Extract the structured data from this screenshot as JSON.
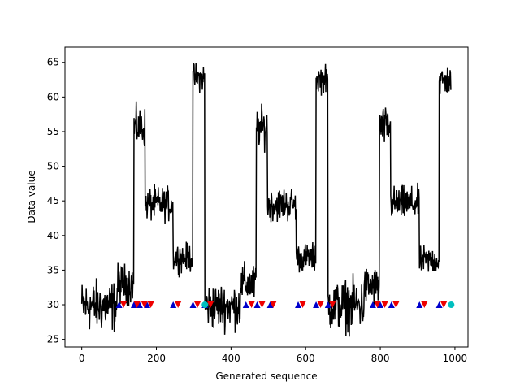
{
  "chart_data": {
    "type": "line",
    "xlabel": "Generated sequence",
    "ylabel": "Data value",
    "xlim": [
      -45,
      1035
    ],
    "ylim": [
      23.9,
      67.2
    ],
    "xticks": [
      0,
      200,
      400,
      600,
      800,
      1000
    ],
    "yticks": [
      25,
      30,
      35,
      40,
      45,
      50,
      55,
      60,
      65
    ],
    "grid": false,
    "series": [
      {
        "color": "#000000",
        "segments": [
          {
            "x0": 0,
            "x1": 95,
            "level": 29.8,
            "noise": 1.8
          },
          {
            "x0": 95,
            "x1": 140,
            "level": 33.0,
            "noise": 1.4
          },
          {
            "x0": 140,
            "x1": 170,
            "level": 55.6,
            "noise": 1.4
          },
          {
            "x0": 170,
            "x1": 245,
            "level": 44.5,
            "noise": 1.2
          },
          {
            "x0": 245,
            "x1": 298,
            "level": 36.8,
            "noise": 1.0
          },
          {
            "x0": 298,
            "x1": 330,
            "level": 62.8,
            "noise": 1.0
          },
          {
            "x0": 330,
            "x1": 425,
            "level": 29.8,
            "noise": 1.6
          },
          {
            "x0": 425,
            "x1": 468,
            "level": 33.0,
            "noise": 1.4
          },
          {
            "x0": 468,
            "x1": 498,
            "level": 55.6,
            "noise": 1.4
          },
          {
            "x0": 498,
            "x1": 575,
            "level": 44.5,
            "noise": 1.2
          },
          {
            "x0": 575,
            "x1": 628,
            "level": 36.8,
            "noise": 1.0
          },
          {
            "x0": 628,
            "x1": 660,
            "level": 62.6,
            "noise": 1.0
          },
          {
            "x0": 660,
            "x1": 757,
            "level": 29.9,
            "noise": 1.8
          },
          {
            "x0": 757,
            "x1": 798,
            "level": 32.6,
            "noise": 1.4
          },
          {
            "x0": 798,
            "x1": 828,
            "level": 55.6,
            "noise": 1.4
          },
          {
            "x0": 828,
            "x1": 905,
            "level": 44.6,
            "noise": 1.2
          },
          {
            "x0": 905,
            "x1": 958,
            "level": 36.4,
            "noise": 1.0
          },
          {
            "x0": 958,
            "x1": 990,
            "level": 62.3,
            "noise": 1.1
          }
        ]
      }
    ],
    "markers_y": 30,
    "blue_up_markers": [
      100,
      140,
      155,
      175,
      245,
      298,
      330,
      440,
      470,
      505,
      580,
      628,
      660,
      780,
      800,
      830,
      905,
      958
    ],
    "red_down_markers": [
      112,
      148,
      168,
      185,
      258,
      310,
      345,
      455,
      483,
      513,
      592,
      640,
      672,
      792,
      812,
      842,
      918,
      970
    ],
    "cyan_circle_markers": [
      330,
      990
    ],
    "colors": {
      "line": "#000000",
      "up_marker": "#0000cc",
      "down_marker": "#ee0000",
      "circle_marker": "#00bfbf",
      "axes": "#000000"
    }
  }
}
